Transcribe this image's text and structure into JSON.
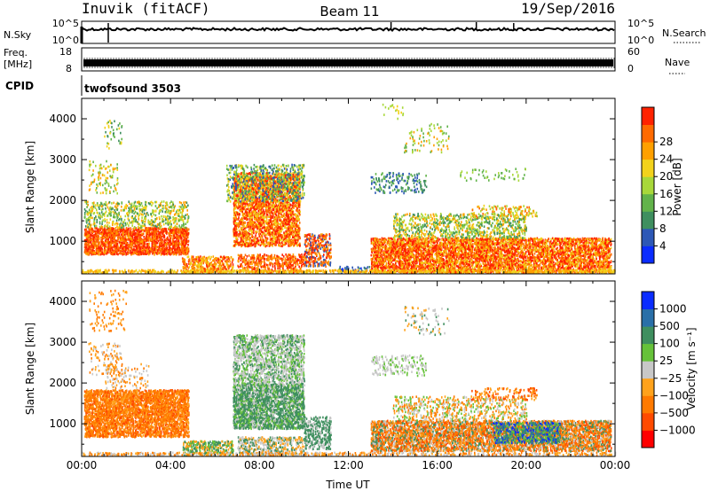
{
  "header": {
    "station": "Inuvik (fitACF)",
    "beam": "Beam 11",
    "date": "19/Sep/2016"
  },
  "panels": {
    "nsky": {
      "label": "N.Sky",
      "ticks": [
        "10^5",
        "10^0"
      ],
      "right_label": "N.Search",
      "right_ticks": [
        "10^5",
        "10^0"
      ]
    },
    "freq": {
      "label_line1": "Freq.",
      "label_line2": "[MHz]",
      "ticks": [
        "18",
        "8"
      ],
      "right_label": "Nave",
      "right_ticks": [
        "60",
        "0"
      ]
    },
    "cpid": {
      "label": "CPID",
      "program": "twofsound 3503"
    }
  },
  "colors": {
    "power": [
      "#0a2cff",
      "#2d58b6",
      "#3f8f5f",
      "#62b34a",
      "#a8d83a",
      "#f2d21c",
      "#ffa000",
      "#ff6a00",
      "#ff2200"
    ],
    "velocity": [
      "#ff0000",
      "#ff4a00",
      "#ff7a00",
      "#ffa21c",
      "#c8c8c8",
      "#66c23a",
      "#3f8f5f",
      "#2a6fa8",
      "#0a2cff"
    ]
  },
  "chart_data": [
    {
      "type": "heatmap",
      "name": "power",
      "xlabel": "",
      "ylabel": "Slant Range [km]",
      "x_ticks": [
        "00:00",
        "04:00",
        "08:00",
        "12:00",
        "16:00",
        "20:00",
        "00:00"
      ],
      "y_ticks": [
        1000,
        2000,
        3000,
        4000
      ],
      "ylim": [
        200,
        4500
      ],
      "colorbar": {
        "label": "Power [dB]",
        "ticks": [
          "4",
          "8",
          "12",
          "16",
          "20",
          "24",
          "28"
        ]
      }
    },
    {
      "type": "heatmap",
      "name": "velocity",
      "xlabel": "Time UT",
      "ylabel": "Slant Range [km]",
      "x_ticks": [
        "00:00",
        "04:00",
        "08:00",
        "12:00",
        "16:00",
        "20:00",
        "00:00"
      ],
      "y_ticks": [
        1000,
        2000,
        3000,
        4000
      ],
      "ylim": [
        200,
        4500
      ],
      "colorbar": {
        "label": "Velocity [m s⁻¹]",
        "ticks": [
          "1000",
          "500",
          "100",
          "25",
          "−25",
          "−100",
          "−500",
          "−1000"
        ]
      }
    }
  ]
}
